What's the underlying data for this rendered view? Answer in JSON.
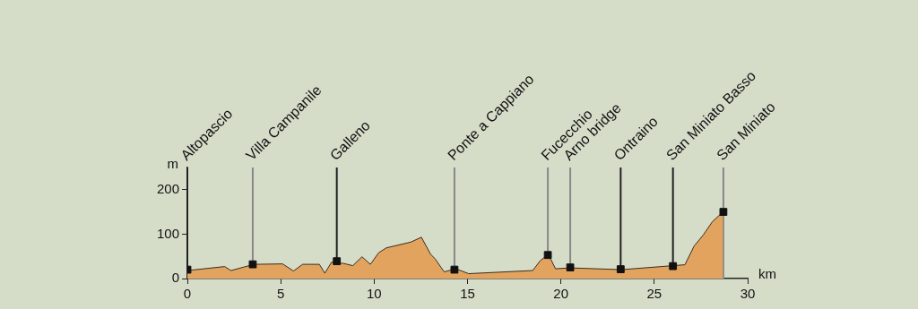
{
  "chart_data": {
    "type": "area",
    "xlabel": "km",
    "ylabel": "m",
    "xlim": [
      0,
      30
    ],
    "xticks": [
      0,
      5,
      10,
      15,
      20,
      25,
      30
    ],
    "ylim": [
      0,
      250
    ],
    "yticks": [
      0,
      100,
      200
    ],
    "grid": false,
    "legend": false,
    "series": [
      {
        "color": "#e2a35e",
        "marker": "none",
        "x": [
          0,
          2.0,
          2.33,
          3.56,
          5.1,
          5.68,
          6.17,
          7.07,
          7.36,
          7.72,
          8.37,
          8.86,
          9.35,
          9.8,
          10.24,
          10.65,
          11.96,
          12.53,
          13.02,
          13.27,
          13.75,
          14.37,
          15.06,
          18.49,
          18.89,
          19.33,
          19.71,
          20.52,
          23.25,
          25.99,
          26.64,
          27.13,
          27.62,
          28.11,
          28.68
        ],
        "values": [
          18,
          27,
          18,
          32,
          33,
          17,
          32,
          32,
          12,
          37,
          34,
          29,
          49,
          32,
          58,
          69,
          82,
          93,
          55,
          44,
          15,
          22,
          11,
          18,
          40,
          55,
          22,
          24,
          20,
          29,
          31,
          73,
          98,
          128,
          150
        ]
      },
      {
        "type": "scatter",
        "color": "#111111",
        "marker": "square",
        "x": [
          0,
          3.5,
          8.0,
          14.3,
          19.3,
          20.5,
          23.2,
          26.0,
          28.7
        ],
        "values": [
          20,
          32,
          39,
          20,
          53,
          25,
          21,
          28,
          150
        ]
      }
    ],
    "ref_lines": [
      {
        "axis": "x",
        "value": 0,
        "label": "Altopascio",
        "color": "#222222"
      },
      {
        "axis": "x",
        "value": 3.5,
        "label": "Villa Campanile",
        "color": "#888888"
      },
      {
        "axis": "x",
        "value": 8.0,
        "label": "Galleno",
        "color": "#222222"
      },
      {
        "axis": "x",
        "value": 14.3,
        "label": "Ponte a Cappiano",
        "color": "#888888"
      },
      {
        "axis": "x",
        "value": 19.3,
        "label": "Fucecchio",
        "color": "#888888"
      },
      {
        "axis": "x",
        "value": 20.5,
        "label": "Arno bridge",
        "color": "#888888"
      },
      {
        "axis": "x",
        "value": 23.2,
        "label": "Ontraino",
        "color": "#222222"
      },
      {
        "axis": "x",
        "value": 26.0,
        "label": "San Miniato Basso",
        "color": "#222222"
      },
      {
        "axis": "x",
        "value": 28.7,
        "label": "San Miniato",
        "color": "#888888"
      }
    ]
  }
}
